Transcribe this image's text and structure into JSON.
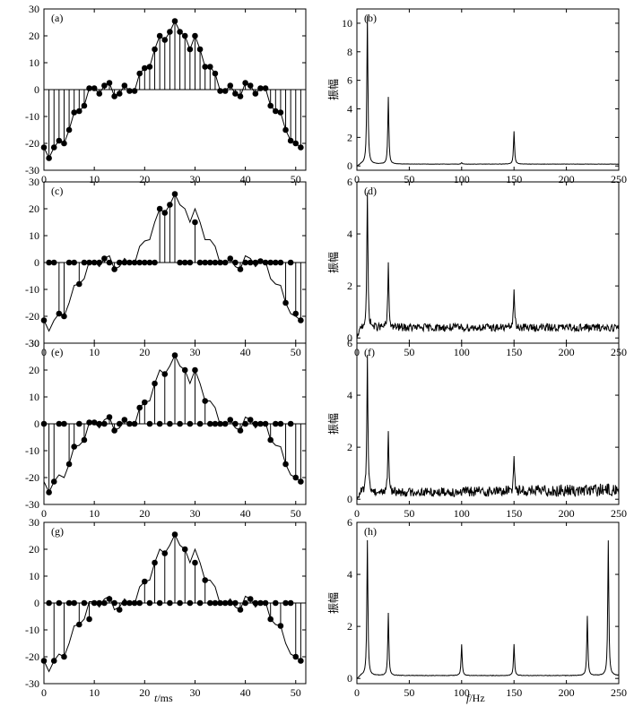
{
  "xcaption_left": {
    "var": "t",
    "unit": "/ms"
  },
  "xcaption_right": {
    "var": "f",
    "unit": "/Hz"
  },
  "chart_data": [
    {
      "panel": "(a)",
      "type": "stem",
      "xlim": [
        0,
        52
      ],
      "ylim": [
        -30,
        30
      ],
      "xticks": [
        0,
        10,
        20,
        30,
        40,
        50
      ],
      "yticks": [
        -30,
        -20,
        -10,
        0,
        10,
        20,
        30
      ],
      "line": [
        -21.5,
        -25.5,
        -21.5,
        -19,
        -20,
        -15,
        -8.5,
        -8,
        -6,
        0.5,
        0.5,
        -1.5,
        1.5,
        2.5,
        -2.5,
        -1.5,
        1.5,
        -0.5,
        -0.5,
        6,
        8,
        8.5,
        15,
        20,
        18.5,
        21.5,
        25.5,
        21.5,
        20,
        15,
        20,
        15,
        8.5,
        8.5,
        6,
        -0.5,
        -0.5,
        1.5,
        -1.5,
        -2.5,
        2.5,
        1.5,
        -1.5,
        0.5,
        0.5,
        -6,
        -8,
        -8.5,
        -15,
        -19,
        -20,
        -21.5
      ],
      "stems": [
        -21.5,
        -25.5,
        -21.5,
        -19,
        -20,
        -15,
        -8.5,
        -8,
        -6,
        0.5,
        0.5,
        -1.5,
        1.5,
        2.5,
        -2.5,
        -1.5,
        1.5,
        -0.5,
        -0.5,
        6,
        8,
        8.5,
        15,
        20,
        18.5,
        21.5,
        25.5,
        21.5,
        20,
        15,
        20,
        15,
        8.5,
        8.5,
        6,
        -0.5,
        -0.5,
        1.5,
        -1.5,
        -2.5,
        2.5,
        1.5,
        -1.5,
        0.5,
        0.5,
        -6,
        -8,
        -8.5,
        -15,
        -19,
        -20,
        -21.5
      ]
    },
    {
      "panel": "(b)",
      "type": "line",
      "ylabel": "振幅",
      "xlim": [
        0,
        250
      ],
      "ylim": [
        -0.3,
        11
      ],
      "xticks": [
        0,
        50,
        100,
        150,
        200,
        250
      ],
      "yticks": [
        0,
        2,
        4,
        6,
        8,
        10
      ],
      "baseline": 0.12,
      "noise": 0.02,
      "peaks": [
        {
          "f": 10,
          "a": 10.4
        },
        {
          "f": 30,
          "a": 4.7
        },
        {
          "f": 150,
          "a": 2.3
        },
        {
          "f": 100,
          "a": 0.1
        }
      ]
    },
    {
      "panel": "(c)",
      "type": "stem",
      "xlim": [
        0,
        52
      ],
      "ylim": [
        -30,
        30
      ],
      "xticks": [
        0,
        10,
        20,
        30,
        40,
        50
      ],
      "yticks": [
        -30,
        -20,
        -10,
        0,
        10,
        20,
        30
      ],
      "line": [
        -21.5,
        -25.5,
        -21.5,
        -19,
        -20,
        -15,
        -8.5,
        -8,
        -6,
        0.5,
        0.5,
        -1.5,
        1.5,
        2.5,
        -2.5,
        -1.5,
        1.5,
        -0.5,
        -0.5,
        6,
        8,
        8.5,
        15,
        20,
        18.5,
        21.5,
        25.5,
        21.5,
        20,
        15,
        20,
        15,
        8.5,
        8.5,
        6,
        -0.5,
        -0.5,
        1.5,
        -1.5,
        -2.5,
        2.5,
        1.5,
        -1.5,
        0.5,
        0.5,
        -6,
        -8,
        -8.5,
        -15,
        -19,
        -20,
        -21.5
      ],
      "stems": [
        -21.5,
        0,
        0,
        -19,
        -20,
        0,
        0,
        -8,
        0,
        0,
        0,
        0,
        1.5,
        0,
        -2.5,
        0,
        0,
        0,
        0,
        0,
        0,
        0,
        0,
        20,
        18.5,
        21.5,
        25.5,
        0,
        0,
        0,
        15,
        0,
        0,
        0,
        0,
        0,
        0,
        1.5,
        0,
        -2.5,
        0,
        0,
        0,
        0.5,
        0,
        0,
        0,
        0,
        -15,
        0,
        -19,
        -21.5
      ]
    },
    {
      "panel": "(d)",
      "type": "line",
      "ylabel": "振幅",
      "xlim": [
        0,
        250
      ],
      "ylim": [
        -0.2,
        6
      ],
      "xticks": [
        0,
        50,
        100,
        150,
        200,
        250
      ],
      "yticks": [
        0,
        2,
        4,
        6
      ],
      "baseline": 0.25,
      "noise": 0.3,
      "peaks": [
        {
          "f": 10,
          "a": 5.2
        },
        {
          "f": 30,
          "a": 2.4
        },
        {
          "f": 150,
          "a": 1.5
        }
      ]
    },
    {
      "panel": "(e)",
      "type": "stem",
      "xlim": [
        0,
        52
      ],
      "ylim": [
        -30,
        30
      ],
      "xticks": [
        0,
        10,
        20,
        30,
        40,
        50
      ],
      "yticks": [
        -30,
        -20,
        -10,
        0,
        10,
        20,
        30
      ],
      "line": [
        -21.5,
        -25.5,
        -21.5,
        -19,
        -20,
        -15,
        -8.5,
        -8,
        -6,
        0.5,
        0.5,
        -1.5,
        1.5,
        2.5,
        -2.5,
        -1.5,
        1.5,
        -0.5,
        -0.5,
        6,
        8,
        8.5,
        15,
        20,
        18.5,
        21.5,
        25.5,
        21.5,
        20,
        15,
        20,
        15,
        8.5,
        8.5,
        6,
        -0.5,
        -0.5,
        1.5,
        -1.5,
        -2.5,
        2.5,
        1.5,
        -1.5,
        0.5,
        0.5,
        -6,
        -8,
        -8.5,
        -15,
        -19,
        -20,
        -21.5
      ],
      "stems": [
        0,
        -25.5,
        -21.5,
        0,
        0,
        -15,
        -8.5,
        0,
        -6,
        0.5,
        0.5,
        0,
        0,
        2.5,
        -2.5,
        0,
        1.5,
        0,
        0,
        6,
        8,
        0,
        15,
        0,
        18.5,
        0,
        25.5,
        0,
        20,
        0,
        20,
        0,
        8.5,
        0,
        0,
        0,
        0,
        1.5,
        0,
        -2.5,
        0,
        1.5,
        0,
        0,
        0,
        -6,
        0,
        0,
        -15,
        0,
        -20,
        -21.5
      ]
    },
    {
      "panel": "(f)",
      "type": "line",
      "ylabel": "振幅",
      "xlim": [
        0,
        250
      ],
      "ylim": [
        -0.2,
        6
      ],
      "xticks": [
        0,
        50,
        100,
        150,
        200,
        250
      ],
      "yticks": [
        0,
        2,
        4,
        6
      ],
      "baseline": 0.1,
      "noise": 0.3,
      "noise_ramp": 1.7,
      "peaks": [
        {
          "f": 10,
          "a": 5.3
        },
        {
          "f": 30,
          "a": 2.4
        },
        {
          "f": 150,
          "a": 1.5
        }
      ]
    },
    {
      "panel": "(g)",
      "type": "stem",
      "xlim": [
        0,
        52
      ],
      "ylim": [
        -30,
        30
      ],
      "xticks": [
        0,
        10,
        20,
        30,
        40,
        50
      ],
      "yticks": [
        -30,
        -20,
        -10,
        0,
        10,
        20,
        30
      ],
      "line": [
        -21.5,
        -25.5,
        -21.5,
        -19,
        -20,
        -15,
        -8.5,
        -8,
        -6,
        0.5,
        0.5,
        -1.5,
        1.5,
        2.5,
        -2.5,
        -1.5,
        1.5,
        -0.5,
        -0.5,
        6,
        8,
        8.5,
        15,
        20,
        18.5,
        21.5,
        25.5,
        21.5,
        20,
        15,
        20,
        15,
        8.5,
        8.5,
        6,
        -0.5,
        -0.5,
        1.5,
        -1.5,
        -2.5,
        2.5,
        1.5,
        -1.5,
        0.5,
        0.5,
        -6,
        -8,
        -8.5,
        -15,
        -19,
        -20,
        -21.5
      ],
      "stems": [
        -21.5,
        0,
        -21.5,
        0,
        -20,
        0,
        0,
        -8,
        0,
        -6,
        0,
        0,
        0,
        1.5,
        0,
        -2.5,
        0,
        0,
        0,
        0,
        8,
        0,
        15,
        0,
        18.5,
        0,
        25.5,
        0,
        20,
        0,
        15,
        0,
        8.5,
        0,
        0,
        0,
        0,
        0,
        0,
        -2.5,
        0,
        1.5,
        0,
        0,
        0,
        -6,
        0,
        -8.5,
        0,
        0,
        -20,
        -21.5
      ]
    },
    {
      "panel": "(h)",
      "type": "line",
      "ylabel": "振幅",
      "xlim": [
        0,
        250
      ],
      "ylim": [
        -0.2,
        6
      ],
      "xticks": [
        0,
        50,
        100,
        150,
        200,
        250
      ],
      "yticks": [
        0,
        2,
        4,
        6
      ],
      "baseline": 0.1,
      "noise": 0.02,
      "peaks": [
        {
          "f": 10,
          "a": 5.2
        },
        {
          "f": 30,
          "a": 2.4
        },
        {
          "f": 100,
          "a": 1.2
        },
        {
          "f": 150,
          "a": 1.2
        },
        {
          "f": 220,
          "a": 2.3
        },
        {
          "f": 240,
          "a": 5.2
        }
      ]
    }
  ]
}
